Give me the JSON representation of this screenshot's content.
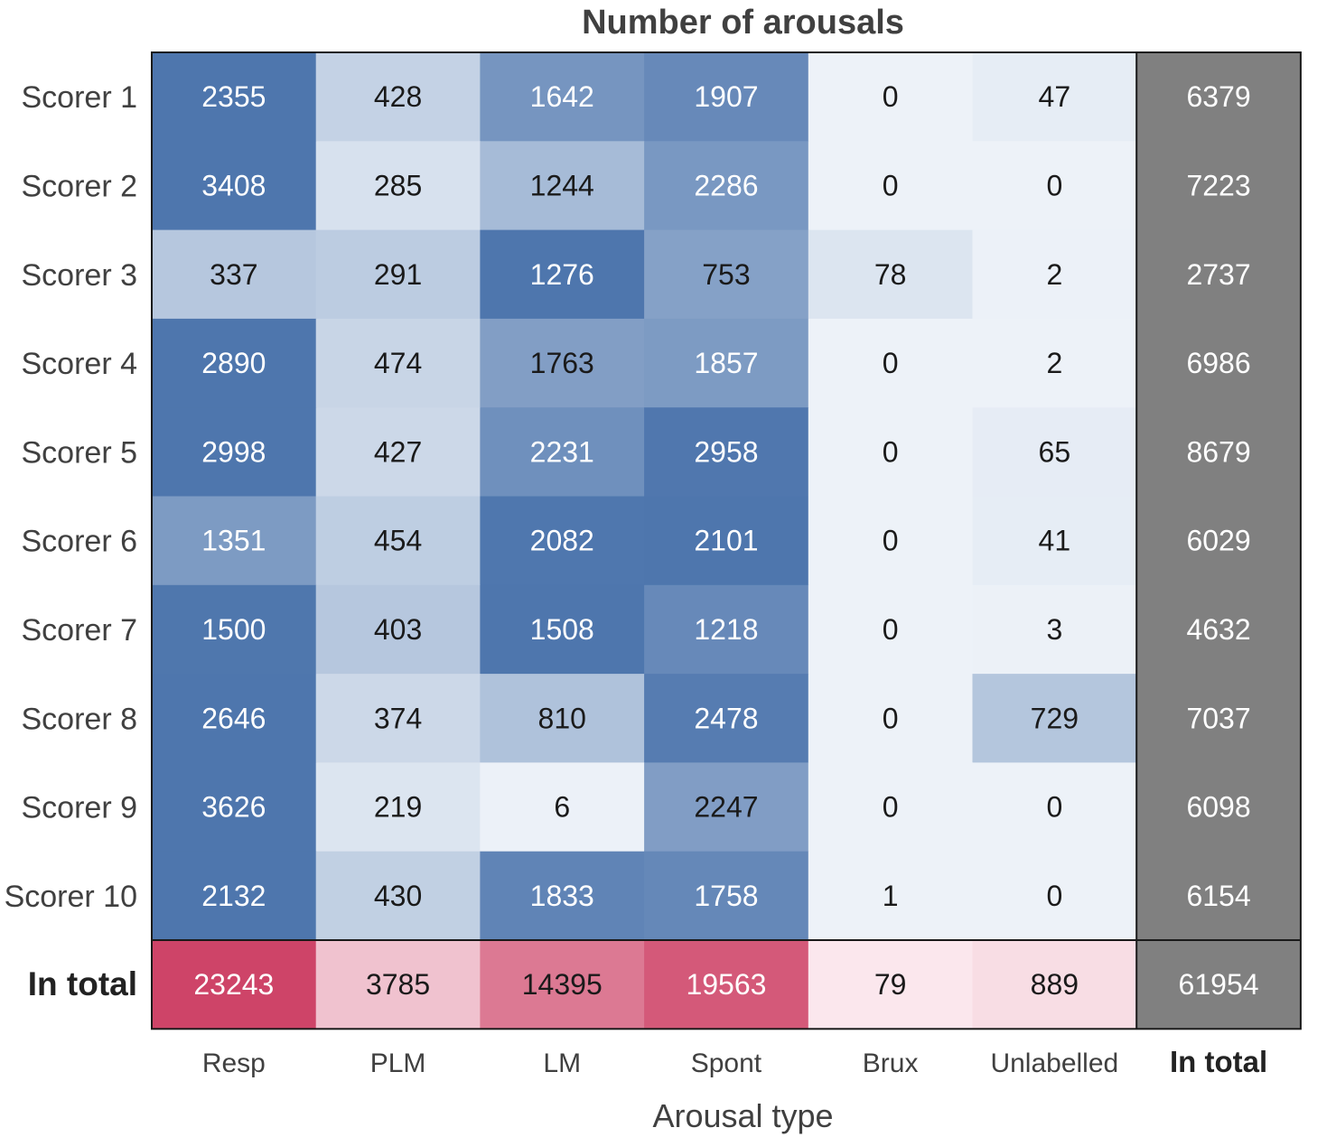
{
  "chart_data": {
    "type": "heatmap",
    "title": "Number of arousals",
    "xlabel": "Arousal type",
    "ylabel": "",
    "columns": [
      "Resp",
      "PLM",
      "LM",
      "Spont",
      "Brux",
      "Unlabelled",
      "In total"
    ],
    "rows": [
      "Scorer 1",
      "Scorer 2",
      "Scorer 3",
      "Scorer 4",
      "Scorer 5",
      "Scorer 6",
      "Scorer 7",
      "Scorer 8",
      "Scorer 9",
      "Scorer 10",
      "In total"
    ],
    "values": [
      [
        2355,
        428,
        1642,
        1907,
        0,
        47,
        6379
      ],
      [
        3408,
        285,
        1244,
        2286,
        0,
        0,
        7223
      ],
      [
        337,
        291,
        1276,
        753,
        78,
        2,
        2737
      ],
      [
        2890,
        474,
        1763,
        1857,
        0,
        2,
        6986
      ],
      [
        2998,
        427,
        2231,
        2958,
        0,
        65,
        8679
      ],
      [
        1351,
        454,
        2082,
        2101,
        0,
        41,
        6029
      ],
      [
        1500,
        403,
        1508,
        1218,
        0,
        3,
        4632
      ],
      [
        2646,
        374,
        810,
        2478,
        0,
        729,
        7037
      ],
      [
        3626,
        219,
        6,
        2247,
        0,
        0,
        6098
      ],
      [
        2132,
        430,
        1833,
        1758,
        1,
        0,
        6154
      ],
      [
        23243,
        3785,
        14395,
        19563,
        79,
        889,
        61954
      ]
    ],
    "colors": {
      "scorer_low": "#edf2f8",
      "scorer_high": "#4e76ad",
      "total_low": "#fbe9ee",
      "total_high": "#ce4468",
      "total_column": "#808080",
      "dark_text": "#1a1a1a",
      "light_text": "#ffffff",
      "border": "#1a1a1a"
    }
  }
}
